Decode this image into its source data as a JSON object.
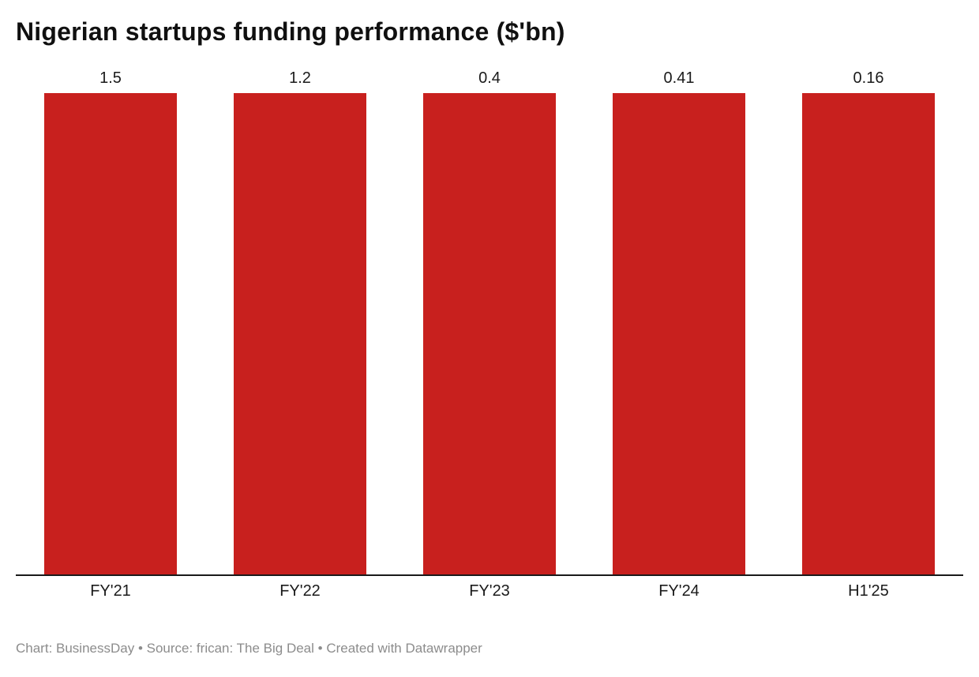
{
  "title": "Nigerian startups funding performance ($'bn)",
  "footer": "Chart: BusinessDay • Source: frican: The Big Deal • Created with Datawrapper",
  "colors": {
    "bar": "#c8201e",
    "axis": "#1a1a1a",
    "title_text": "#101010",
    "label_text": "#1a1a1a",
    "footer_text": "#8c8c8c",
    "background": "#ffffff"
  },
  "chart_data": {
    "type": "bar",
    "categories": [
      "FY'21",
      "FY'22",
      "FY'23",
      "FY'24",
      "H1'25"
    ],
    "values": [
      1.5,
      1.2,
      0.4,
      0.41,
      0.16
    ],
    "value_labels": [
      "1.5",
      "1.2",
      "0.4",
      "0.41",
      "0.16"
    ],
    "title": "Nigerian startups funding performance ($'bn)",
    "xlabel": "",
    "ylabel": "",
    "ylim": [
      0,
      1.5
    ],
    "grid": false,
    "legend": false,
    "bar_color": "#c8201e",
    "orientation": "vertical"
  }
}
